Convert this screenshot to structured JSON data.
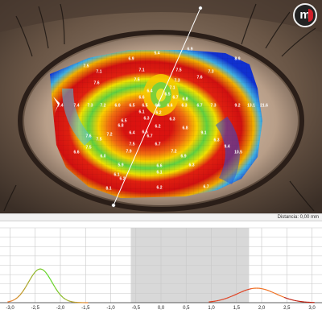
{
  "brand": {
    "logo_text": "m"
  },
  "topography": {
    "labels": [
      [
        "6.9"
      ],
      [
        "5.4"
      ],
      [
        "6.9"
      ],
      [
        "8.9"
      ],
      [
        "7.5"
      ],
      [
        "7.1"
      ],
      [
        "7.5"
      ],
      [
        "7.1"
      ],
      [
        "7.3"
      ],
      [
        "7.6"
      ],
      [
        "7.5"
      ],
      [
        "7.3"
      ],
      [
        "7.6"
      ],
      [
        "7.1"
      ],
      [
        "6.4"
      ],
      [
        "6.5"
      ],
      [
        "6.6"
      ],
      [
        "6.7"
      ],
      [
        "6.8"
      ],
      [
        "7.4"
      ],
      [
        "7.4"
      ],
      [
        "7.3"
      ],
      [
        "7.2"
      ],
      [
        "6.0"
      ],
      [
        "6.5"
      ],
      [
        "6.5"
      ],
      [
        "6.6"
      ],
      [
        "6.6"
      ],
      [
        "6.3"
      ],
      [
        "6.7"
      ],
      [
        "7.3"
      ],
      [
        "9.2"
      ],
      [
        "13.1"
      ],
      [
        "21.6"
      ],
      [
        "6.1"
      ],
      [
        "6.2"
      ],
      [
        "6.3"
      ],
      [
        "6.3"
      ],
      [
        "6.5"
      ],
      [
        "6.2"
      ],
      [
        "6.4"
      ],
      [
        "6.5"
      ],
      [
        "6.7"
      ],
      [
        "6.8"
      ],
      [
        "6.8"
      ],
      [
        "9.1"
      ],
      [
        "7.6"
      ],
      [
        "7.2"
      ],
      [
        "6.3"
      ],
      [
        "7.5"
      ],
      [
        "6.7"
      ],
      [
        "7.5"
      ],
      [
        "7.9"
      ],
      [
        "9.4"
      ],
      [
        "6.6"
      ],
      [
        "7.5"
      ],
      [
        "7.2"
      ],
      [
        "6.0"
      ],
      [
        "6.9"
      ],
      [
        "10.5"
      ],
      [
        "5.9"
      ],
      [
        "6.3"
      ],
      [
        "6.1"
      ],
      [
        "6.6"
      ],
      [
        "6.1"
      ],
      [
        "8.1"
      ],
      [
        "6.2"
      ],
      [
        "6.2"
      ],
      [
        "6.7"
      ]
    ]
  },
  "distance": {
    "readout": "Distancia: 0,00 mm"
  },
  "profile": {
    "ticks": [
      "-3,0",
      "-2,5",
      "-2,0",
      "-1,5",
      "-1,0",
      "-0,5",
      "0,0",
      "0,5",
      "1,0",
      "1,5",
      "2,0",
      "2,5",
      "3,0"
    ],
    "xlim": [
      -3.2,
      3.2
    ],
    "shaded_range": [
      -0.6,
      1.75
    ]
  }
}
